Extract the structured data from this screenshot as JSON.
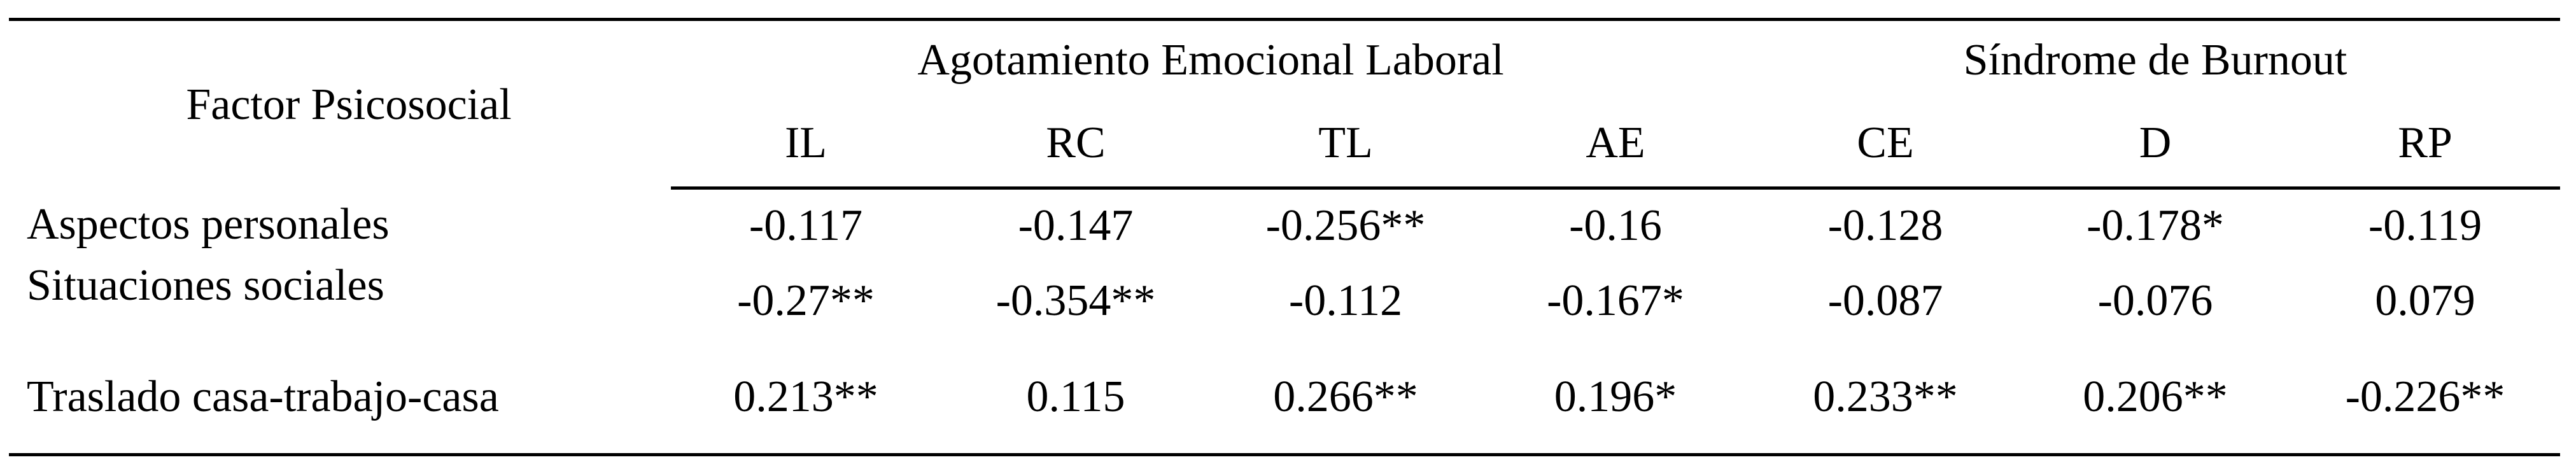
{
  "table": {
    "row_header": "Factor Psicosocial",
    "groups": [
      {
        "label": "Agotamiento Emocional Laboral",
        "columns": [
          "IL",
          "RC",
          "TL",
          "AE"
        ]
      },
      {
        "label": "Síndrome de Burnout",
        "columns": [
          "CE",
          "D",
          "RP"
        ]
      }
    ],
    "rows": [
      {
        "label": "Aspectos personales",
        "values": [
          "-0.117",
          "-0.147",
          "-0.256**",
          "-0.16",
          "-0.128",
          "-0.178*",
          "-0.119"
        ]
      },
      {
        "label": "Situaciones sociales",
        "values": [
          "-0.27**",
          "-0.354**",
          "-0.112",
          "-0.167*",
          "-0.087",
          "-0.076",
          "0.079"
        ]
      },
      {
        "label": "Traslado casa-trabajo-casa",
        "values": [
          "0.213**",
          "0.115",
          "0.266**",
          "0.196*",
          "0.233**",
          "0.206**",
          "-0.226**"
        ]
      }
    ],
    "colors": {
      "text": "#000000",
      "background": "#ffffff",
      "rule": "#000000"
    }
  }
}
